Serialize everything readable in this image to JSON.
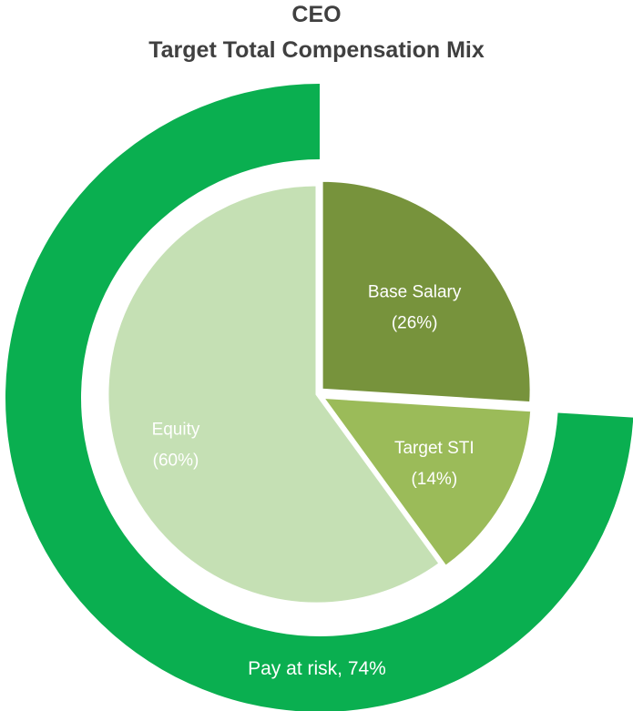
{
  "chart_data": {
    "type": "pie",
    "title": "CEO",
    "subtitle": "Target Total Compensation Mix",
    "slices": [
      {
        "name": "Base Salary",
        "pct_label": "(26%)",
        "value": 26,
        "color": "#77933c",
        "label_color": "#ffffff"
      },
      {
        "name": "Target STI",
        "pct_label": "(14%)",
        "value": 14,
        "color": "#9bbb59",
        "label_color": "#ffffff"
      },
      {
        "name": "Equity",
        "pct_label": "(60%)",
        "value": 60,
        "color": "#c5e0b4",
        "label_color": "#ffffff"
      }
    ],
    "ring": {
      "label": "Pay at risk, 74%",
      "value": 74,
      "color": "#0aaf50",
      "label_color": "#ffffff"
    }
  }
}
